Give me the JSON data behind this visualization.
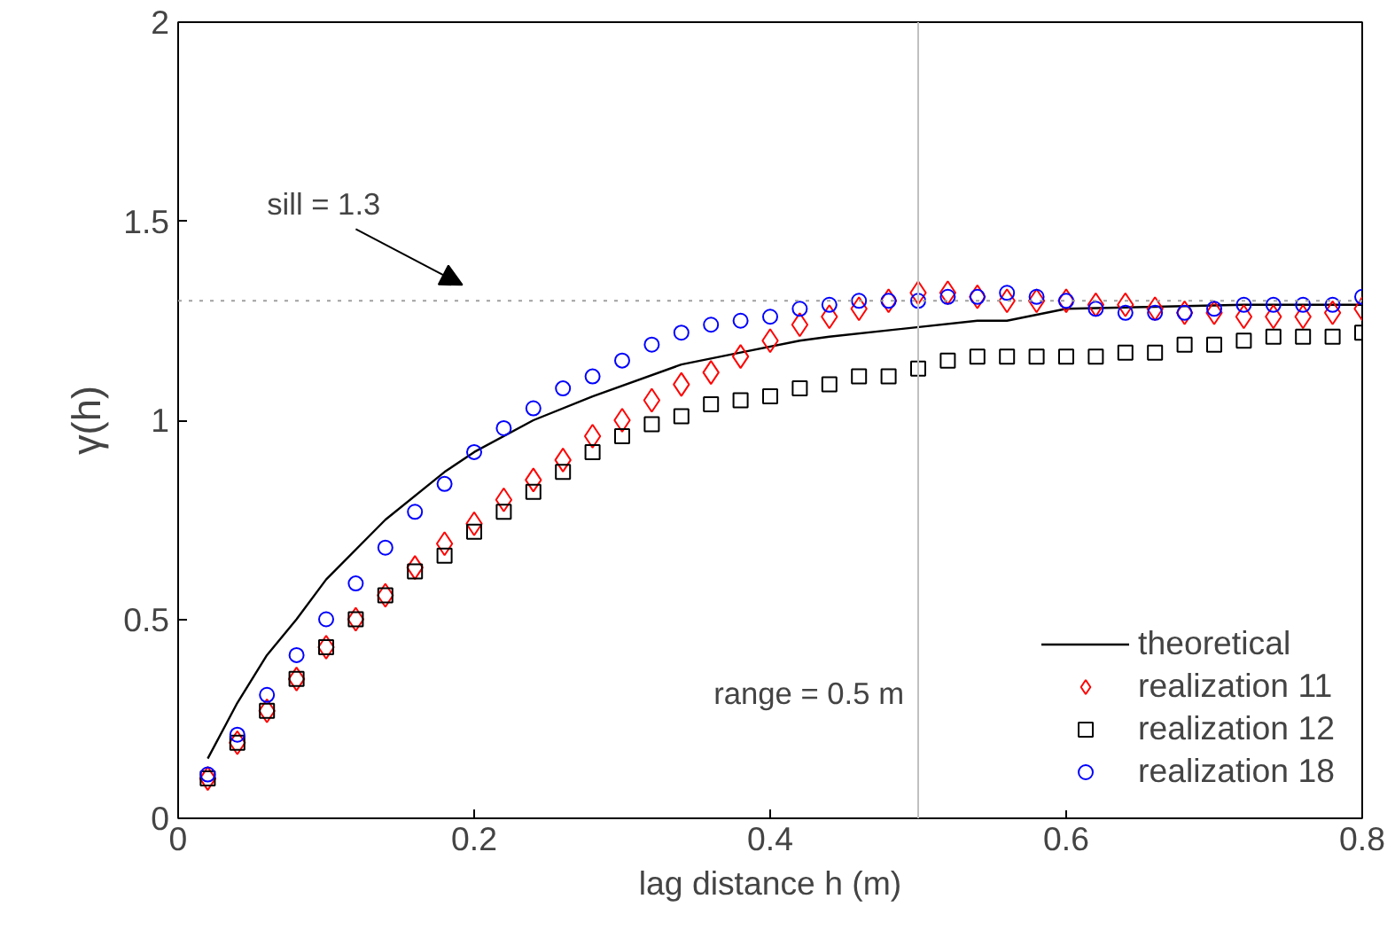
{
  "chart_data": {
    "type": "scatter",
    "xlabel": "lag distance h (m)",
    "ylabel": "γ(h)",
    "xlim": [
      0,
      0.8
    ],
    "xticks": [
      0,
      0.2,
      0.4,
      0.6,
      0.8
    ],
    "ylim": [
      0,
      2
    ],
    "yticks": [
      0,
      0.5,
      1,
      1.5,
      2
    ],
    "grid": false,
    "legend": "bottom right",
    "ref_lines": [
      {
        "axis": "y",
        "value": 1.3,
        "label": "sill = 1.3",
        "color": "#a0a0a0",
        "line_style": "dotted"
      },
      {
        "axis": "x",
        "value": 0.5,
        "label": "range = 0.5 m",
        "color": "#c0c0c0",
        "line_style": "solid"
      }
    ],
    "series": [
      {
        "name": "theoretical",
        "type": "line",
        "color": "#000000",
        "marker": "none",
        "line_style": "solid",
        "x": [
          0.02,
          0.04,
          0.06,
          0.08,
          0.1,
          0.14,
          0.18,
          0.2,
          0.24,
          0.28,
          0.34,
          0.38,
          0.42,
          0.44,
          0.54,
          0.56,
          0.6,
          0.72,
          0.8
        ],
        "values": [
          0.15,
          0.29,
          0.41,
          0.5,
          0.6,
          0.75,
          0.87,
          0.92,
          1.0,
          1.06,
          1.14,
          1.17,
          1.2,
          1.21,
          1.25,
          1.25,
          1.28,
          1.29,
          1.29
        ]
      },
      {
        "name": "realization 11",
        "color": "#ff0000",
        "marker": "diamond",
        "x": [
          0.02,
          0.04,
          0.06,
          0.08,
          0.1,
          0.12,
          0.14,
          0.16,
          0.18,
          0.2,
          0.22,
          0.24,
          0.26,
          0.28,
          0.3,
          0.32,
          0.34,
          0.36,
          0.38,
          0.4,
          0.42,
          0.44,
          0.46,
          0.48,
          0.5,
          0.52,
          0.54,
          0.56,
          0.58,
          0.6,
          0.62,
          0.64,
          0.66,
          0.68,
          0.7,
          0.72,
          0.74,
          0.76,
          0.78,
          0.8
        ],
        "values": [
          0.1,
          0.19,
          0.27,
          0.35,
          0.43,
          0.5,
          0.56,
          0.63,
          0.69,
          0.74,
          0.8,
          0.85,
          0.9,
          0.96,
          1.0,
          1.05,
          1.09,
          1.12,
          1.16,
          1.2,
          1.24,
          1.26,
          1.28,
          1.3,
          1.32,
          1.32,
          1.31,
          1.3,
          1.3,
          1.3,
          1.29,
          1.29,
          1.28,
          1.27,
          1.27,
          1.26,
          1.26,
          1.26,
          1.27,
          1.28
        ]
      },
      {
        "name": "realization 12",
        "color": "#000000",
        "marker": "square",
        "x": [
          0.02,
          0.04,
          0.06,
          0.08,
          0.1,
          0.12,
          0.14,
          0.16,
          0.18,
          0.2,
          0.22,
          0.24,
          0.26,
          0.28,
          0.3,
          0.32,
          0.34,
          0.36,
          0.38,
          0.4,
          0.42,
          0.44,
          0.46,
          0.48,
          0.5,
          0.52,
          0.54,
          0.56,
          0.58,
          0.6,
          0.62,
          0.64,
          0.66,
          0.68,
          0.7,
          0.72,
          0.74,
          0.76,
          0.78,
          0.8
        ],
        "values": [
          0.1,
          0.19,
          0.27,
          0.35,
          0.43,
          0.5,
          0.56,
          0.62,
          0.66,
          0.72,
          0.77,
          0.82,
          0.87,
          0.92,
          0.96,
          0.99,
          1.01,
          1.04,
          1.05,
          1.06,
          1.08,
          1.09,
          1.11,
          1.11,
          1.13,
          1.15,
          1.16,
          1.16,
          1.16,
          1.16,
          1.16,
          1.17,
          1.17,
          1.19,
          1.19,
          1.2,
          1.21,
          1.21,
          1.21,
          1.22
        ]
      },
      {
        "name": "realization 18",
        "color": "#0000ff",
        "marker": "circle",
        "x": [
          0.02,
          0.04,
          0.06,
          0.08,
          0.1,
          0.12,
          0.14,
          0.16,
          0.18,
          0.2,
          0.22,
          0.24,
          0.26,
          0.28,
          0.3,
          0.32,
          0.34,
          0.36,
          0.38,
          0.4,
          0.42,
          0.44,
          0.46,
          0.48,
          0.5,
          0.52,
          0.54,
          0.56,
          0.58,
          0.6,
          0.62,
          0.64,
          0.66,
          0.68,
          0.7,
          0.72,
          0.74,
          0.76,
          0.78,
          0.8
        ],
        "values": [
          0.11,
          0.21,
          0.31,
          0.41,
          0.5,
          0.59,
          0.68,
          0.77,
          0.84,
          0.92,
          0.98,
          1.03,
          1.08,
          1.11,
          1.15,
          1.19,
          1.22,
          1.24,
          1.25,
          1.26,
          1.28,
          1.29,
          1.3,
          1.3,
          1.3,
          1.31,
          1.31,
          1.32,
          1.31,
          1.3,
          1.28,
          1.27,
          1.27,
          1.27,
          1.28,
          1.29,
          1.29,
          1.29,
          1.29,
          1.31
        ]
      }
    ]
  }
}
